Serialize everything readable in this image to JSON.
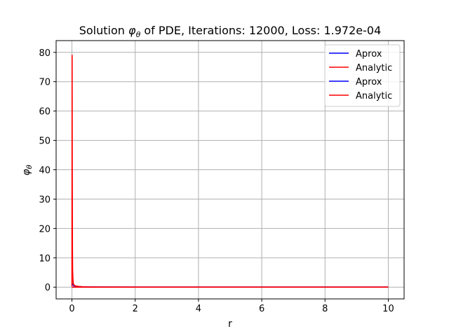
{
  "chart_data": {
    "type": "line",
    "title_prefix": "Solution ",
    "title_symbol": "φ",
    "title_subscript": "θ",
    "title_suffix": " of PDE, Iterations: 12000, Loss: 1.972e-04",
    "xlabel": "r",
    "ylabel_symbol": "φ",
    "ylabel_subscript": "θ",
    "xlim": [
      -0.5,
      10.5
    ],
    "ylim": [
      -4,
      84
    ],
    "xticks": [
      0,
      2,
      4,
      6,
      8,
      10
    ],
    "xtick_labels": [
      "0",
      "2",
      "4",
      "6",
      "8",
      "10"
    ],
    "yticks": [
      0,
      10,
      20,
      30,
      40,
      50,
      60,
      70,
      80
    ],
    "ytick_labels": [
      "0",
      "10",
      "20",
      "30",
      "40",
      "50",
      "60",
      "70",
      "80"
    ],
    "grid": true,
    "legend_position": "top-right",
    "series": [
      {
        "name": "Aprox",
        "color": "#0000ff",
        "x": [
          0.0,
          0.01,
          0.02,
          0.03,
          0.05,
          0.08,
          0.12,
          0.2,
          0.3,
          0.5,
          0.8,
          1.0,
          2.0,
          4.0,
          6.0,
          8.0,
          10.0
        ],
        "y": [
          0.5,
          1.0,
          1.2,
          0.9,
          0.6,
          0.4,
          0.3,
          0.2,
          0.12,
          0.08,
          0.05,
          0.04,
          0.02,
          0.0,
          0.0,
          0.0,
          0.0
        ]
      },
      {
        "name": "Analytic",
        "color": "#ff0000",
        "x": [
          0.0,
          0.005,
          0.01,
          0.015,
          0.02,
          0.03,
          0.04,
          0.05,
          0.08,
          0.12,
          0.2,
          0.3,
          0.5,
          0.8,
          1.0,
          2.0,
          4.0,
          6.0,
          8.0,
          10.0
        ],
        "y": [
          0.3,
          79,
          40,
          15,
          6,
          3,
          1.5,
          1.0,
          0.6,
          0.4,
          0.25,
          0.15,
          0.08,
          0.05,
          0.04,
          0.02,
          0.0,
          0.0,
          0.0,
          0.0
        ]
      },
      {
        "name": "Aprox",
        "color": "#0000ff",
        "x": [
          0.0,
          10.0
        ],
        "y": [
          0.0,
          0.0
        ]
      },
      {
        "name": "Analytic",
        "color": "#ff0000",
        "x": [
          0.0,
          10.0
        ],
        "y": [
          0.0,
          0.0
        ]
      }
    ]
  }
}
